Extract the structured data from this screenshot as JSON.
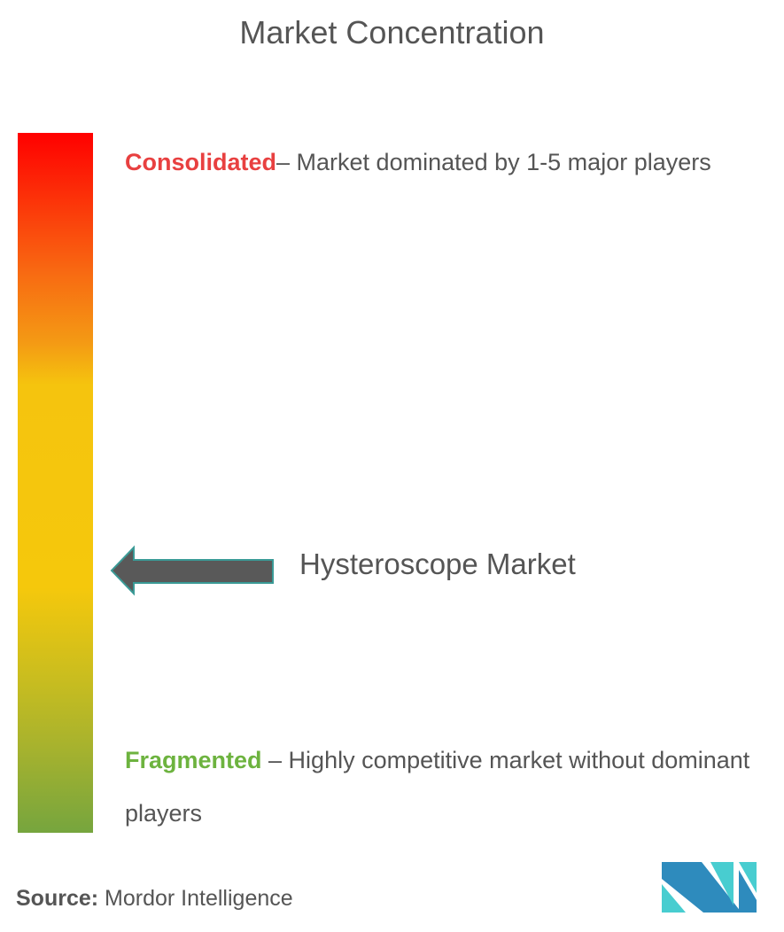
{
  "title": "Market Concentration",
  "chart_data": {
    "type": "gradient-scale",
    "title": "Market Concentration",
    "scale_top": {
      "label": "Consolidated",
      "description": "– Market dominated by 1-5 major players",
      "color": "#e84040"
    },
    "scale_bottom": {
      "label": "Fragmented",
      "description": " – Highly competitive market without dominant players",
      "color": "#6db33f"
    },
    "marker": {
      "label": "Hysteroscope Market",
      "position_fraction_from_top": 0.63
    }
  },
  "source": {
    "label": "Source:",
    "value": " Mordor Intelligence"
  },
  "colors": {
    "arrow_fill": "#595959",
    "arrow_stroke": "#3a9a96",
    "logo_dark": "#2e8bbd",
    "logo_light": "#48cdd0"
  }
}
